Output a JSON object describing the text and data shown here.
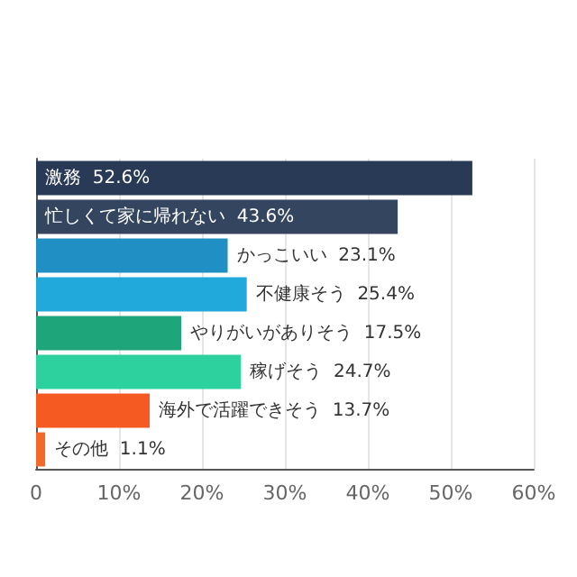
{
  "chart_data": {
    "type": "bar",
    "orientation": "horizontal",
    "categories": [
      "激務",
      "忙しくて家に帰れない",
      "かっこいい",
      "不健康そう",
      "やりがいがありそう",
      "稼げそう",
      "海外で活躍できそう",
      "その他"
    ],
    "values": [
      52.6,
      43.6,
      23.1,
      25.4,
      17.5,
      24.7,
      13.7,
      1.1
    ],
    "value_labels": [
      "52.6%",
      "43.6%",
      "23.1%",
      "25.4%",
      "17.5%",
      "24.7%",
      "13.7%",
      "1.1%"
    ],
    "colors": [
      "#283a55",
      "#34465f",
      "#1f8fc4",
      "#22a9dc",
      "#1fa57a",
      "#2dd19e",
      "#f45a22",
      "#f26a2a"
    ],
    "xlim": [
      0,
      60
    ],
    "xticks": [
      0,
      {
        "value": 10,
        "label": "10%"
      },
      {
        "value": 20,
        "label": "20%"
      },
      {
        "value": 30,
        "label": "30%"
      },
      {
        "value": 40,
        "label": "40%"
      },
      {
        "value": 50,
        "label": "50%"
      },
      {
        "value": 60,
        "label": "60%"
      }
    ],
    "grid": "x",
    "tick_labels": "x"
  }
}
